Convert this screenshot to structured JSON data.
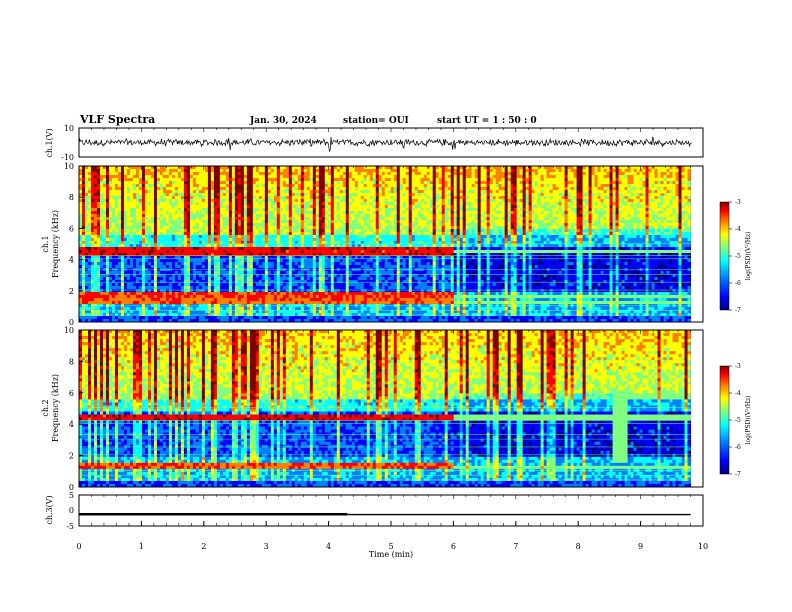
{
  "header": {
    "title": "VLF Spectra",
    "date": "Jan. 30, 2024",
    "station": "station= OUI",
    "start": "start  UT =   1 : 50 : 0"
  },
  "colors": {
    "spectrum": [
      "#00007f",
      "#0000ff",
      "#0080ff",
      "#00ffff",
      "#80ff80",
      "#ffff00",
      "#ff8000",
      "#ff0000",
      "#7f0000"
    ]
  },
  "chart_data": [
    {
      "id": "ch1-waveform",
      "type": "line",
      "ylabel": "ch.1(V)",
      "yticks": [
        "10",
        "-10"
      ],
      "ylim": [
        -10,
        10
      ],
      "xlim": [
        0,
        10
      ],
      "description_values": {
        "baseline": 0,
        "typical_amplitude": 1.5,
        "spike_times_min": [
          1.98,
          2.4,
          3.55,
          4.03,
          5.2,
          6.0,
          9.2
        ]
      }
    },
    {
      "id": "ch1-spectrogram",
      "type": "heatmap",
      "ylabel_top": "ch.1",
      "ylabel": "Frequency (kHz)",
      "yticks": [
        "0",
        "2",
        "4",
        "6",
        "8",
        "10"
      ],
      "ylim": [
        0,
        10
      ],
      "xlim": [
        0,
        9.8
      ],
      "colorbar": {
        "label": "log(PSD)(V²/Hz)",
        "ticks": [
          "-3",
          "-4",
          "-5",
          "-6",
          "-7"
        ],
        "range": [
          -7,
          -3
        ]
      },
      "bands_khz": [
        {
          "f": 4.5,
          "until_min": 6.0,
          "level": -3.6
        },
        {
          "f": 1.7,
          "until_min": 6.0,
          "level": -3.8
        },
        {
          "f": 1.3,
          "until_min": 6.0,
          "level": -4.0
        }
      ]
    },
    {
      "id": "ch2-spectrogram",
      "type": "heatmap",
      "ylabel_top": "ch.2",
      "ylabel": "Frequency (kHz)",
      "yticks": [
        "0",
        "2",
        "4",
        "6",
        "8",
        "10"
      ],
      "ylim": [
        0,
        10
      ],
      "xlim": [
        0,
        9.8
      ],
      "colorbar": {
        "label": "log(PSD)(V²/Hz)",
        "ticks": [
          "-3",
          "-4",
          "-5",
          "-6",
          "-7"
        ],
        "range": [
          -7,
          -3
        ]
      },
      "bands_khz": [
        {
          "f": 4.4,
          "until_min": 6.0,
          "level": -3.6
        },
        {
          "f": 1.3,
          "until_min": 6.0,
          "level": -3.9
        }
      ]
    },
    {
      "id": "ch3-signal",
      "type": "line",
      "ylabel": "ch.3(V)",
      "yticks": [
        "5",
        "0",
        "-5"
      ],
      "ylim": [
        -5,
        5
      ],
      "xlim": [
        0,
        9.8
      ],
      "x": [
        0,
        4.3,
        4.3,
        9.8
      ],
      "y": [
        -1.2,
        -1.2,
        -1.3,
        -1.3
      ]
    }
  ],
  "xaxis": {
    "label": "Time (min)",
    "ticks": [
      "0",
      "1",
      "2",
      "3",
      "4",
      "5",
      "6",
      "7",
      "8",
      "9",
      "10"
    ],
    "range": [
      0,
      10
    ]
  }
}
